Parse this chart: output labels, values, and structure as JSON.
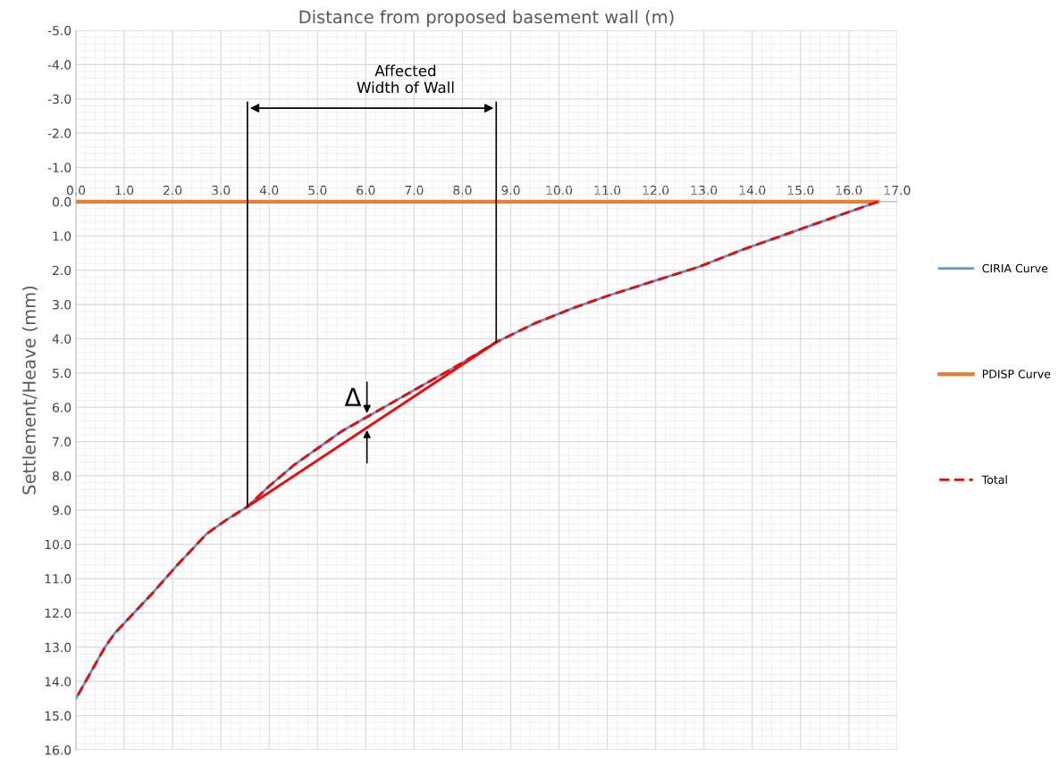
{
  "chart_data": {
    "type": "line",
    "xlabel": "Distance from proposed basement wall (m)",
    "ylabel": "Settlement/Heave (mm)",
    "xlim": [
      0,
      17
    ],
    "ylim": [
      16,
      -5
    ],
    "xticks": [
      {
        "value": 0,
        "label": "0.0"
      },
      {
        "value": 1,
        "label": "1.0"
      },
      {
        "value": 2,
        "label": "2.0"
      },
      {
        "value": 3,
        "label": "3.0"
      },
      {
        "value": 4,
        "label": "4.0"
      },
      {
        "value": 5,
        "label": "5.0"
      },
      {
        "value": 6,
        "label": "6.0"
      },
      {
        "value": 7,
        "label": "7.0"
      },
      {
        "value": 8,
        "label": "8.0"
      },
      {
        "value": 9,
        "label": "9.0"
      },
      {
        "value": 10,
        "label": "10.0"
      },
      {
        "value": 11,
        "label": "11.0"
      },
      {
        "value": 12,
        "label": "12.0"
      },
      {
        "value": 13,
        "label": "13.0"
      },
      {
        "value": 14,
        "label": "14.0"
      },
      {
        "value": 15,
        "label": "15.0"
      },
      {
        "value": 16,
        "label": "16.0"
      },
      {
        "value": 17,
        "label": "17.0"
      }
    ],
    "yticks": [
      {
        "value": -5,
        "label": "-5.0"
      },
      {
        "value": -4,
        "label": "-4.0"
      },
      {
        "value": -3,
        "label": "-3.0"
      },
      {
        "value": -2,
        "label": "-2.0"
      },
      {
        "value": -1,
        "label": "-1.0"
      },
      {
        "value": 0,
        "label": "0.0"
      },
      {
        "value": 1,
        "label": "1.0"
      },
      {
        "value": 2,
        "label": "2.0"
      },
      {
        "value": 3,
        "label": "3.0"
      },
      {
        "value": 4,
        "label": "4.0"
      },
      {
        "value": 5,
        "label": "5.0"
      },
      {
        "value": 6,
        "label": "6.0"
      },
      {
        "value": 7,
        "label": "7.0"
      },
      {
        "value": 8,
        "label": "8.0"
      },
      {
        "value": 9,
        "label": "9.0"
      },
      {
        "value": 10,
        "label": "10.0"
      },
      {
        "value": 11,
        "label": "11.0"
      },
      {
        "value": 12,
        "label": "12.0"
      },
      {
        "value": 13,
        "label": "13.0"
      },
      {
        "value": 14,
        "label": "14.0"
      },
      {
        "value": 15,
        "label": "15.0"
      },
      {
        "value": 16,
        "label": "16.0"
      }
    ],
    "grid": true,
    "legend": "right",
    "series": [
      {
        "name": "CIRIA Curve",
        "color": "#5b9bd5",
        "line_style": "solid",
        "x": [
          0,
          0.2,
          0.4,
          0.6,
          0.8,
          1.2,
          1.6,
          2.1,
          2.7,
          3.1,
          3.55,
          4.0,
          4.5,
          5.0,
          5.5,
          6.0,
          6.5,
          7.0,
          7.5,
          8.0,
          8.7,
          9.5,
          10.3,
          11.0,
          12.0,
          12.9,
          13.8,
          14.7,
          15.6,
          16.6
        ],
        "values": [
          14.5,
          14.0,
          13.5,
          13.0,
          12.6,
          12.0,
          11.4,
          10.6,
          9.7,
          9.3,
          8.9,
          8.3,
          7.7,
          7.2,
          6.7,
          6.3,
          5.9,
          5.5,
          5.1,
          4.7,
          4.1,
          3.55,
          3.1,
          2.75,
          2.3,
          1.9,
          1.4,
          0.95,
          0.5,
          0
        ]
      },
      {
        "name": "PDISP Curve",
        "color": "#ed7d31",
        "line_style": "solid",
        "x": [
          0,
          16.6
        ],
        "values": [
          0,
          0
        ]
      },
      {
        "name": "Total",
        "color": "#ff0000",
        "line_style": "dashed",
        "x": [
          0,
          0.2,
          0.4,
          0.6,
          0.8,
          1.2,
          1.6,
          2.1,
          2.7,
          3.1,
          3.55,
          4.0,
          4.5,
          5.0,
          5.5,
          6.0,
          6.5,
          7.0,
          7.5,
          8.0,
          8.7,
          9.5,
          10.3,
          11.0,
          12.0,
          12.9,
          13.8,
          14.7,
          15.6,
          16.6
        ],
        "values": [
          14.5,
          14.0,
          13.5,
          13.0,
          12.6,
          12.0,
          11.4,
          10.6,
          9.7,
          9.3,
          8.9,
          8.3,
          7.7,
          7.2,
          6.7,
          6.3,
          5.9,
          5.5,
          5.1,
          4.7,
          4.1,
          3.55,
          3.1,
          2.75,
          2.3,
          1.9,
          1.4,
          0.95,
          0.5,
          0
        ]
      },
      {
        "color": "#ff0000",
        "line_style": "solid",
        "x": [
          3.55,
          8.7
        ],
        "values": [
          8.9,
          4.1
        ]
      },
      {
        "color": "#000000",
        "line_style": "solid",
        "x": [
          3.55,
          3.55
        ],
        "values": [
          -2.9,
          8.9
        ]
      },
      {
        "color": "#000000",
        "line_style": "solid",
        "x": [
          8.7,
          8.7
        ],
        "values": [
          -2.9,
          4.1
        ]
      }
    ],
    "annotations": [
      "Affected\nWidth of Wall",
      "Δ"
    ]
  }
}
